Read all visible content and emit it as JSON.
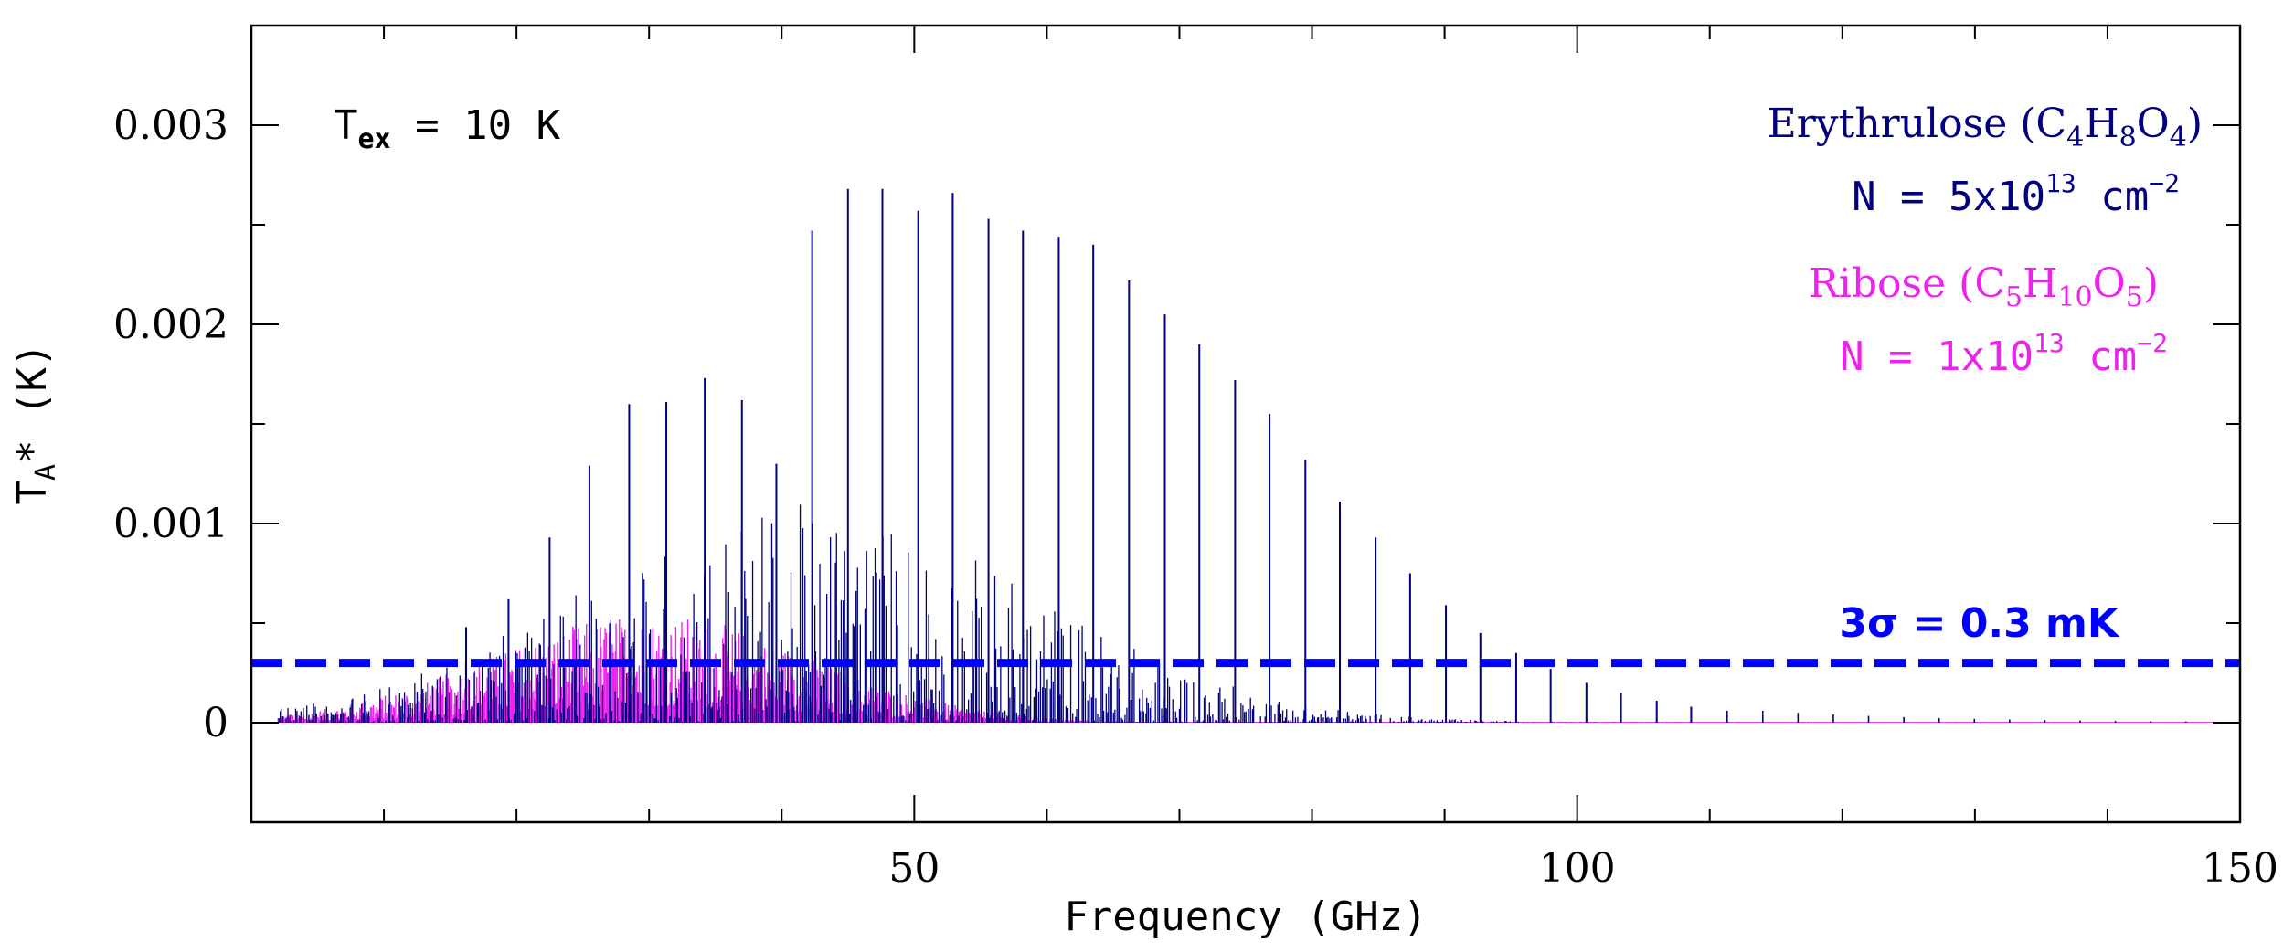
{
  "chart_data": {
    "type": "line",
    "title": "",
    "xlabel": "Frequency (GHz)",
    "ylabel": "T",
    "ylabel_sub": "A",
    "ylabel_rest": "* (K)",
    "xlim": [
      0,
      150
    ],
    "ylim": [
      -0.0005,
      0.0035
    ],
    "x_ticks": [
      50,
      100,
      150
    ],
    "x_tick_labels": [
      "50",
      "100",
      "150"
    ],
    "y_ticks": [
      0,
      0.001,
      0.002,
      0.003
    ],
    "y_tick_labels": [
      "0",
      "0.001",
      "0.002",
      "0.003"
    ],
    "grid": false,
    "annotation_tex": {
      "T": "T",
      "sub": "ex",
      "rest": " = 10 K"
    },
    "threshold": {
      "value": 0.0003,
      "label_sigma": "3σ",
      "label_rest": " = 0.3 mK",
      "color": "#0000ff"
    },
    "series": [
      {
        "name": "Erythrulose",
        "formula": {
          "open": "(C",
          "s1": "4",
          "h": "H",
          "s2": "8",
          "o": "O",
          "s3": "4",
          "close": ")"
        },
        "column_density": {
          "pre": "N = 5x10",
          "exp": "13",
          "unit": " cm",
          "unit_exp": "−2"
        },
        "color": "#000080",
        "envelope_peak_freq_ghz": 52,
        "envelope_peak_ta_k": 0.0027,
        "strong_lines": [
          {
            "f": 16.2,
            "t": 0.00048
          },
          {
            "f": 19.4,
            "t": 0.00062
          },
          {
            "f": 22.5,
            "t": 0.00093
          },
          {
            "f": 25.5,
            "t": 0.00129
          },
          {
            "f": 28.5,
            "t": 0.0016
          },
          {
            "f": 31.3,
            "t": 0.00161
          },
          {
            "f": 34.2,
            "t": 0.00173
          },
          {
            "f": 37.0,
            "t": 0.00162
          },
          {
            "f": 39.6,
            "t": 0.0013
          },
          {
            "f": 42.3,
            "t": 0.00247
          },
          {
            "f": 45.0,
            "t": 0.00268
          },
          {
            "f": 47.6,
            "t": 0.00268
          },
          {
            "f": 50.3,
            "t": 0.00257
          },
          {
            "f": 52.9,
            "t": 0.00266
          },
          {
            "f": 55.6,
            "t": 0.00253
          },
          {
            "f": 58.2,
            "t": 0.00247
          },
          {
            "f": 60.9,
            "t": 0.00244
          },
          {
            "f": 63.5,
            "t": 0.0024
          },
          {
            "f": 66.2,
            "t": 0.00222
          },
          {
            "f": 68.9,
            "t": 0.00205
          },
          {
            "f": 71.5,
            "t": 0.0019
          },
          {
            "f": 74.2,
            "t": 0.00172
          },
          {
            "f": 76.8,
            "t": 0.00155
          },
          {
            "f": 79.5,
            "t": 0.00132
          },
          {
            "f": 82.1,
            "t": 0.00111
          },
          {
            "f": 84.8,
            "t": 0.00093
          },
          {
            "f": 87.4,
            "t": 0.00075
          },
          {
            "f": 90.1,
            "t": 0.00059
          },
          {
            "f": 92.7,
            "t": 0.00045
          },
          {
            "f": 95.4,
            "t": 0.00035
          },
          {
            "f": 98.0,
            "t": 0.00027
          },
          {
            "f": 100.7,
            "t": 0.0002
          },
          {
            "f": 103.3,
            "t": 0.00015
          },
          {
            "f": 106.0,
            "t": 0.00011
          },
          {
            "f": 108.6,
            "t": 8e-05
          },
          {
            "f": 111.3,
            "t": 6e-05
          }
        ]
      },
      {
        "name": "Ribose",
        "formula": {
          "open": "(C",
          "s1": "5",
          "h": "H",
          "s2": "10",
          "o": "O",
          "s3": "5",
          "close": ")"
        },
        "column_density": {
          "pre": "N = 1x10",
          "exp": "13",
          "unit": " cm",
          "unit_exp": "−2"
        },
        "color": "#ee22ee",
        "envelope_peak_freq_ghz": 30,
        "envelope_peak_ta_k": 0.00055
      }
    ]
  }
}
